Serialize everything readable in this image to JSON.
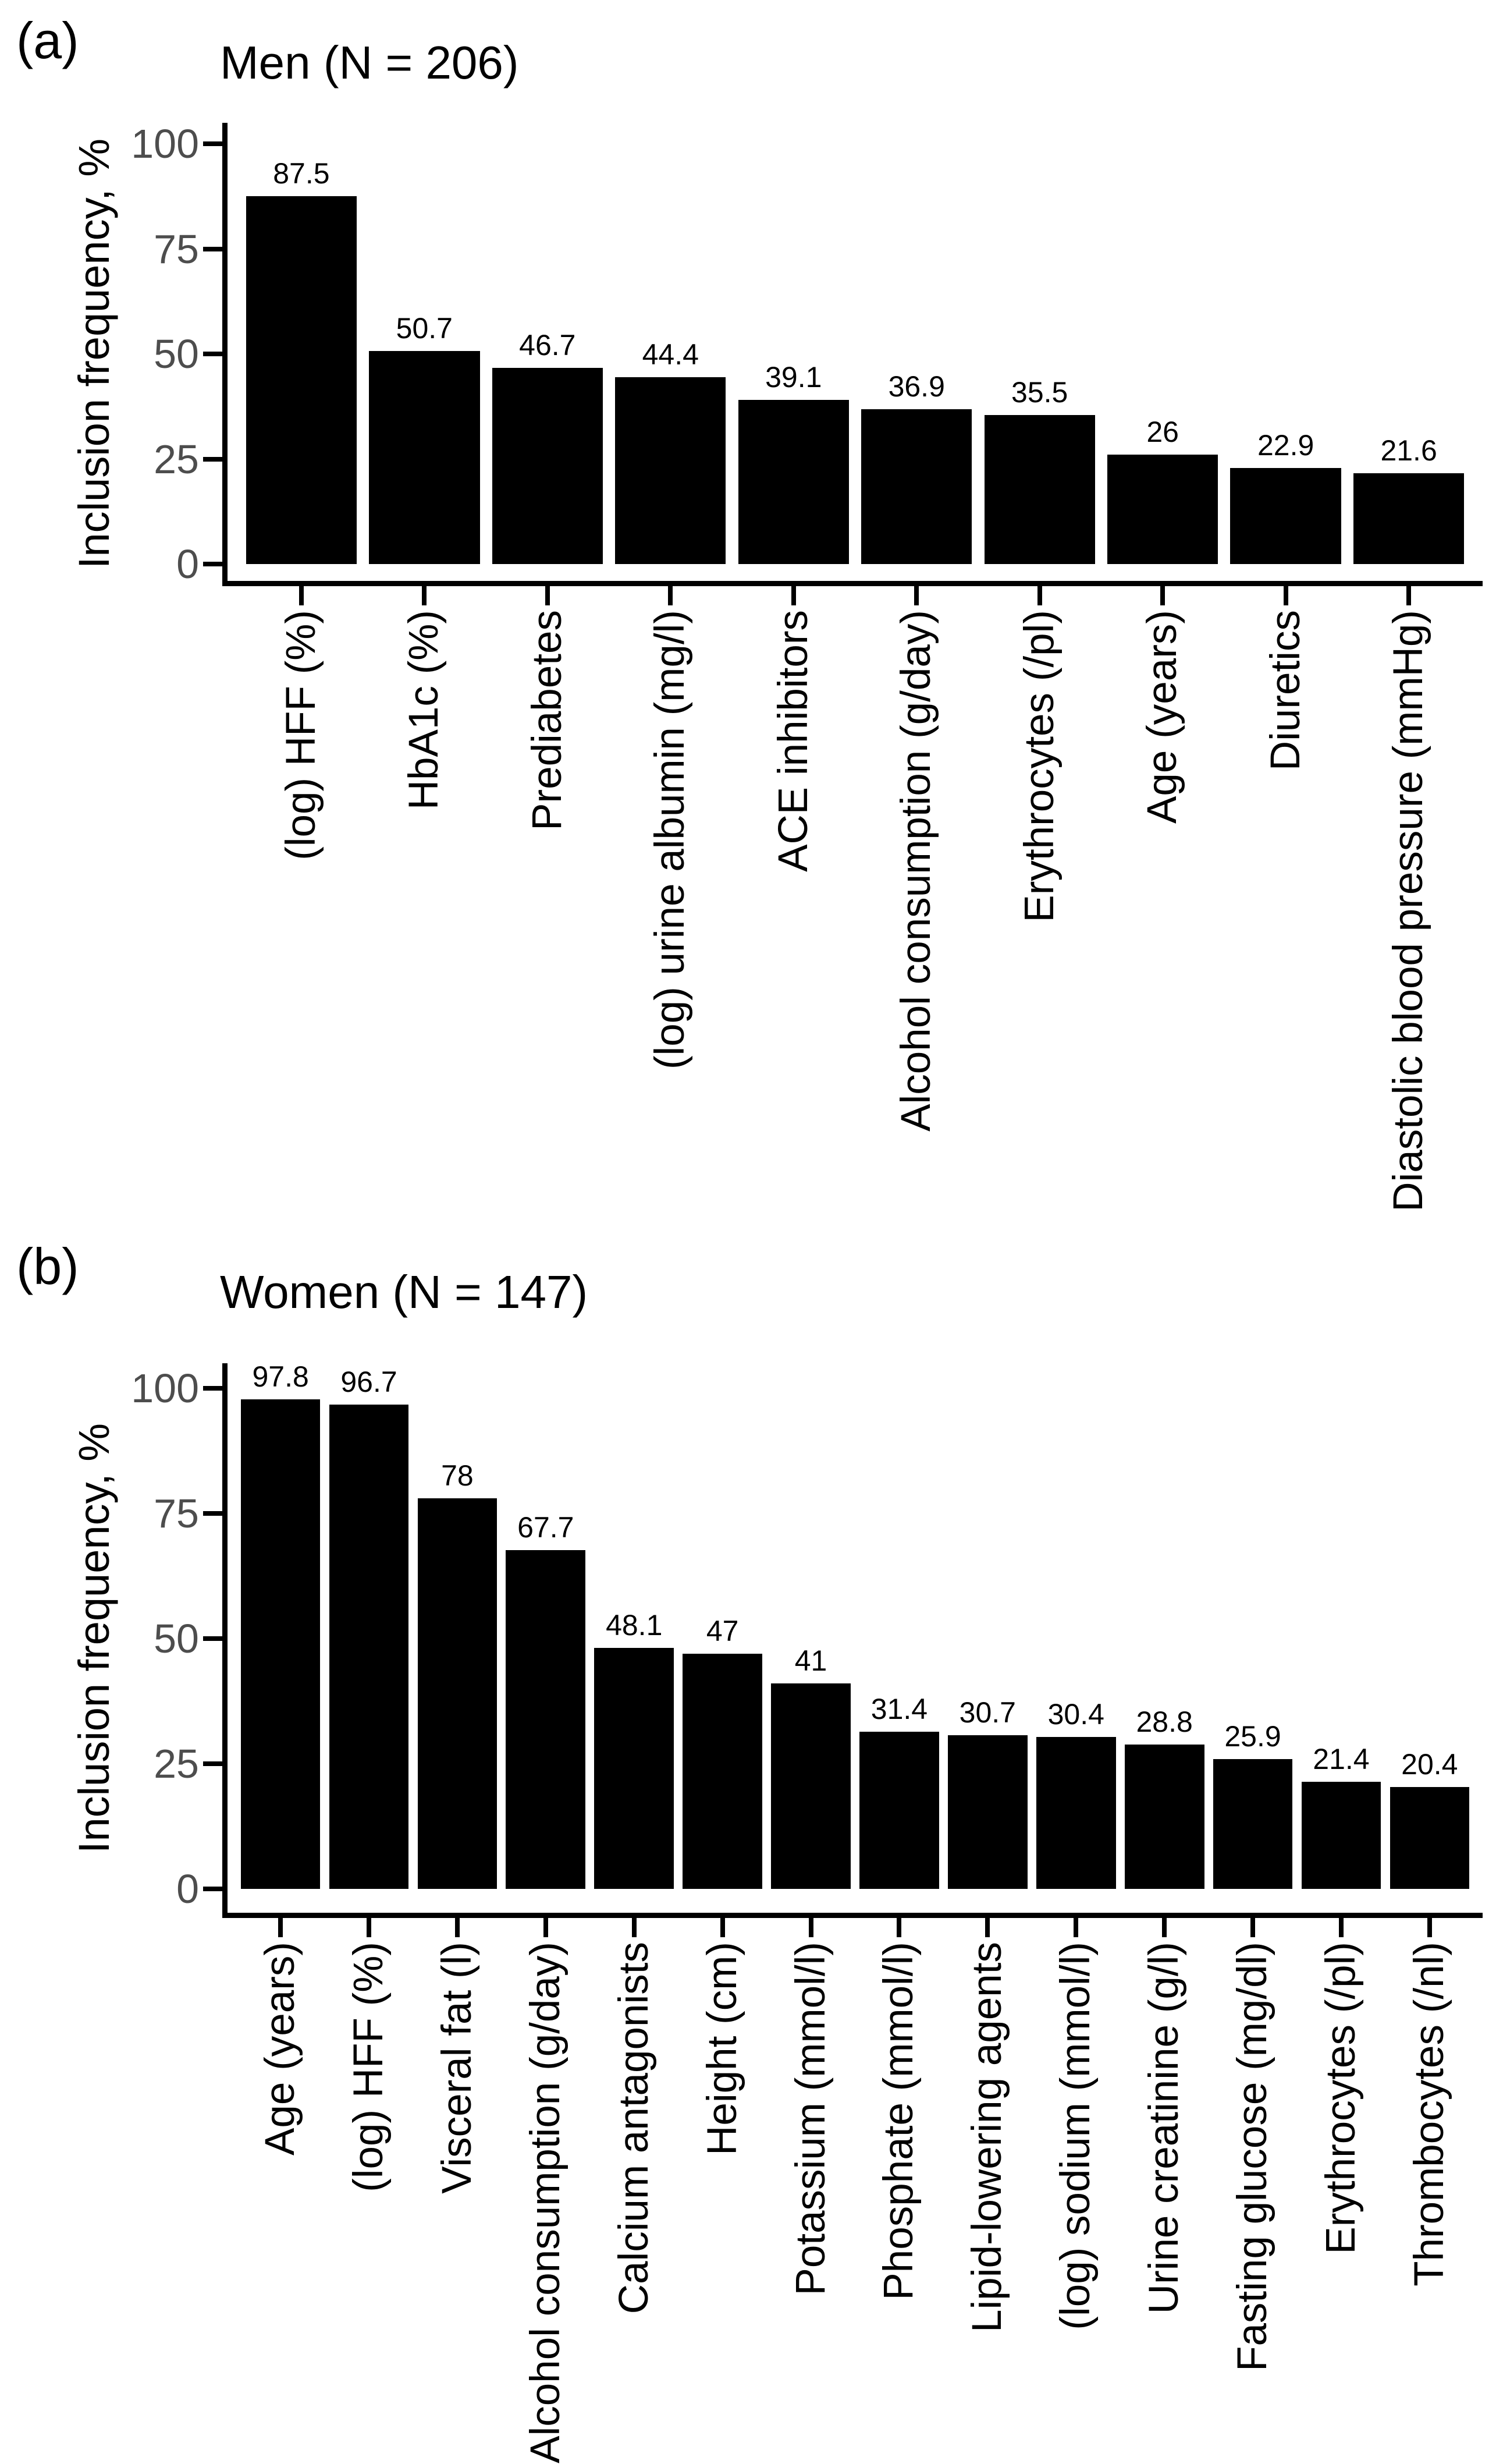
{
  "figure": {
    "background": "#ffffff",
    "bar_color": "#000000",
    "axis_color": "#000000",
    "tick_label_color": "#4d4d4d"
  },
  "chart_data": [
    {
      "type": "bar",
      "panel_label": "(a)",
      "title": "Men (N = 206)",
      "ylabel": "Inclusion frequency, %",
      "xlabel": "",
      "ylim": [
        0,
        100
      ],
      "yticks": [
        0,
        25,
        50,
        75,
        100
      ],
      "grid": "off",
      "legend": "none",
      "categories": [
        "(log) HFF (%)",
        "HbA1c (%)",
        "Prediabetes",
        "(log) urine albumin (mg/l)",
        "ACE inhibitors",
        "Alcohol consumption (g/day)",
        "Erythrocytes (/pl)",
        "Age (years)",
        "Diuretics",
        "Diastolic blood pressure (mmHg)"
      ],
      "values": [
        87.5,
        50.7,
        46.7,
        44.4,
        39.1,
        36.9,
        35.5,
        26,
        22.9,
        21.6
      ]
    },
    {
      "type": "bar",
      "panel_label": "(b)",
      "title": "Women (N = 147)",
      "ylabel": "Inclusion frequency, %",
      "xlabel": "",
      "ylim": [
        0,
        100
      ],
      "yticks": [
        0,
        25,
        50,
        75,
        100
      ],
      "grid": "off",
      "legend": "none",
      "categories": [
        "Age (years)",
        "(log) HFF (%)",
        "Visceral fat (l)",
        "Alcohol consumption (g/day)",
        "Calcium antagonists",
        "Height (cm)",
        "Potassium (mmol/l)",
        "Phosphate (mmol/l)",
        "Lipid-lowering agents",
        "(log) sodium (mmol/l)",
        "Urine creatinine (g/l)",
        "Fasting glucose (mg/dl)",
        "Erythrocytes (/pl)",
        "Thrombocytes (/nl)"
      ],
      "values": [
        97.8,
        96.7,
        78,
        67.7,
        48.1,
        47,
        41,
        31.4,
        30.7,
        30.4,
        28.8,
        25.9,
        21.4,
        20.4
      ]
    }
  ]
}
